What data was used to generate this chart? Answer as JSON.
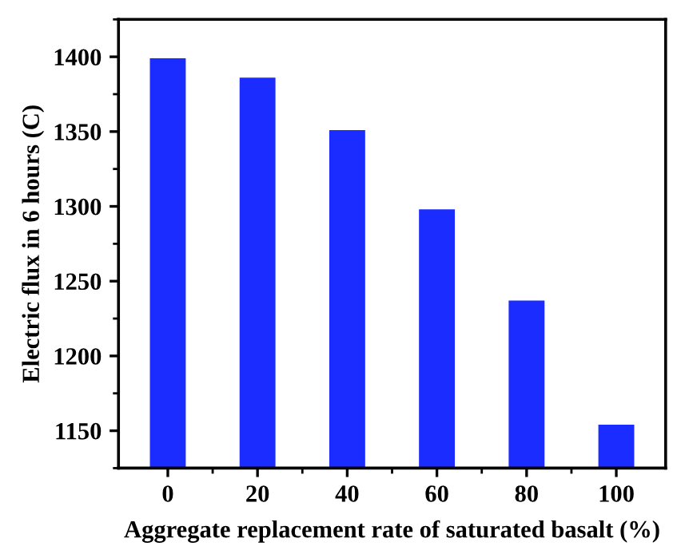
{
  "chart_data": {
    "type": "bar",
    "xlabel": "Aggregate replacement rate of saturated basalt (%)",
    "ylabel": "Electric flux in 6 hours (C)",
    "categories": [
      "0",
      "20",
      "40",
      "60",
      "80",
      "100"
    ],
    "values": [
      1399,
      1386,
      1351,
      1298,
      1237,
      1154
    ],
    "color": "#1a2cff",
    "ylim": [
      1125,
      1425
    ],
    "yticks": [
      1150,
      1200,
      1250,
      1300,
      1350,
      1400
    ],
    "grid": false,
    "legend": false
  }
}
